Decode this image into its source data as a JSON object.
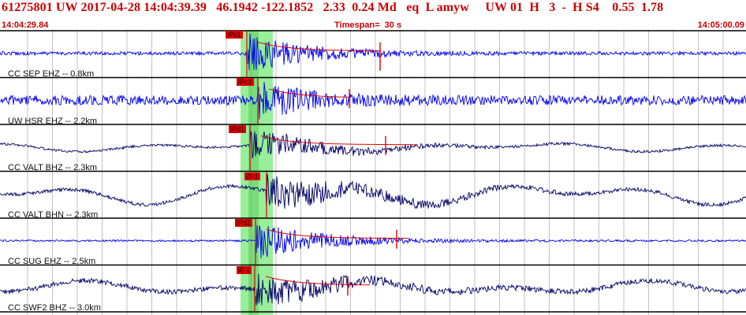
{
  "header": {
    "title": "61275801 UW 2017-04-28 14:04:39.39   46.1942 -122.1852   2.33  0.24 Md   eq  L amyw     UW 01  H   3  -  H S4    0.55  1.78",
    "start_time": "14:04:29.84",
    "timespan": "Timespan=  30 s",
    "end_time": "14:05:00.09"
  },
  "colors": {
    "header_text": "#cc0000",
    "trace_blue": "#0000ee",
    "trace_black": "#000066",
    "pick_red": "#e00000",
    "window_green": "#99ee99",
    "grid": "#444444"
  },
  "traces": [
    {
      "label": "CC SEP EHZ -- 0.8km",
      "pick": "iPc1",
      "color": "blue"
    },
    {
      "label": "UW HSR EHZ -- 2.2km",
      "pick": "iPc1",
      "color": "blue"
    },
    {
      "label": "CC VALT BHZ -- 2.3km",
      "pick": "iPd1",
      "color": "black"
    },
    {
      "label": "CC VALT BHN -- 2.3km",
      "pick": "iS 1",
      "color": "black"
    },
    {
      "label": "CC SUG EHZ -- 2.5km",
      "pick": "iPd1",
      "color": "blue"
    },
    {
      "label": "CC SWF2 BHZ -- 3.0km",
      "pick": "iP 1",
      "color": "black"
    }
  ]
}
